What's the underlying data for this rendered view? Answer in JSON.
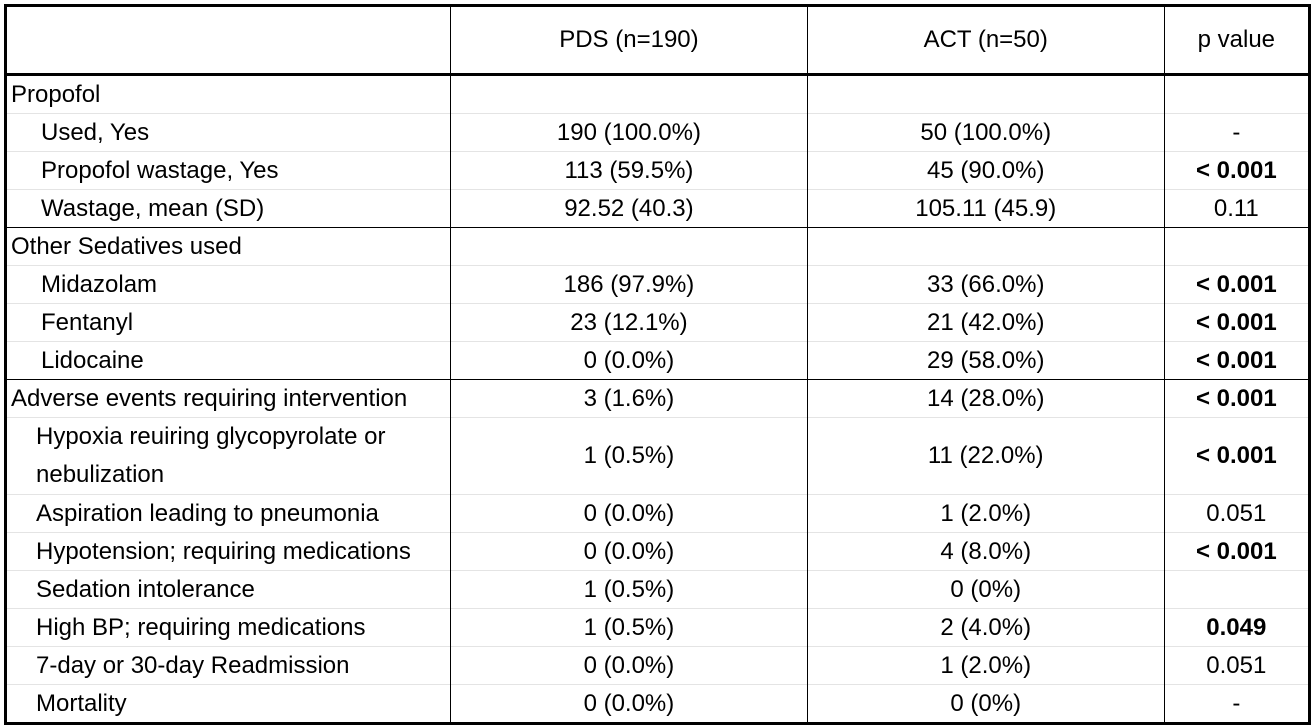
{
  "table": {
    "headers": [
      "",
      "PDS (n=190)",
      "ACT (n=50)",
      "p value"
    ],
    "rows": [
      {
        "label": "Propofol",
        "kind": "section",
        "pds": "",
        "act": "",
        "p": "",
        "sig": false
      },
      {
        "label": "Used, Yes",
        "kind": "item",
        "pds": "190 (100.0%)",
        "act": "50 (100.0%)",
        "p": "-",
        "sig": false
      },
      {
        "label": "Propofol wastage, Yes",
        "kind": "item",
        "pds": "113 (59.5%)",
        "act": "45 (90.0%)",
        "p": "< 0.001",
        "sig": true
      },
      {
        "label": "Wastage, mean (SD)",
        "kind": "item",
        "pds": "92.52 (40.3)",
        "act": "105.11 (45.9)",
        "p": "0.11",
        "sig": false
      },
      {
        "label": "Other Sedatives used",
        "kind": "section",
        "pds": "",
        "act": "",
        "p": "",
        "sig": false
      },
      {
        "label": "Midazolam",
        "kind": "item",
        "pds": "186 (97.9%)",
        "act": "33 (66.0%)",
        "p": "< 0.001",
        "sig": true
      },
      {
        "label": "Fentanyl",
        "kind": "item",
        "pds": "23 (12.1%)",
        "act": "21 (42.0%)",
        "p": "< 0.001",
        "sig": true
      },
      {
        "label": "Lidocaine",
        "kind": "item",
        "pds": "0 (0.0%)",
        "act": "29 (58.0%)",
        "p": "< 0.001",
        "sig": true
      },
      {
        "label": "Adverse events requiring intervention",
        "kind": "section",
        "pds": "3 (1.6%)",
        "act": "14 (28.0%)",
        "p": "< 0.001",
        "sig": true
      },
      {
        "label": "Hypoxia reuiring glycopyrolate or nebulization",
        "kind": "subitem-tall",
        "pds": "1 (0.5%)",
        "act": "11 (22.0%)",
        "p": "< 0.001",
        "sig": true
      },
      {
        "label": "Aspiration leading to pneumonia",
        "kind": "subitem",
        "pds": "0 (0.0%)",
        "act": "1 (2.0%)",
        "p": "0.051",
        "sig": false
      },
      {
        "label": "Hypotension; requiring medications",
        "kind": "subitem",
        "pds": "0 (0.0%)",
        "act": "4 (8.0%)",
        "p": "< 0.001",
        "sig": true
      },
      {
        "label": "Sedation intolerance",
        "kind": "subitem",
        "pds": "1 (0.5%)",
        "act": "0 (0%)",
        "p": "",
        "sig": false
      },
      {
        "label": "High BP; requiring medications",
        "kind": "subitem",
        "pds": "1 (0.5%)",
        "act": "2 (4.0%)",
        "p": "0.049",
        "sig": true
      },
      {
        "label": "7-day or 30-day Readmission",
        "kind": "subitem",
        "pds": "0 (0.0%)",
        "act": "1 (2.0%)",
        "p": "0.051",
        "sig": false
      },
      {
        "label": "Mortality",
        "kind": "subitem",
        "pds": "0 (0.0%)",
        "act": "0 (0%)",
        "p": "-",
        "sig": false
      }
    ]
  },
  "chart_data": {
    "type": "table",
    "columns": [
      "",
      "PDS (n=190)",
      "ACT (n=50)",
      "p value"
    ],
    "rows": [
      [
        "Propofol",
        "",
        "",
        ""
      ],
      [
        "Used, Yes",
        "190 (100.0%)",
        "50 (100.0%)",
        "-"
      ],
      [
        "Propofol wastage, Yes",
        "113 (59.5%)",
        "45 (90.0%)",
        "< 0.001"
      ],
      [
        "Wastage, mean (SD)",
        "92.52 (40.3)",
        "105.11 (45.9)",
        "0.11"
      ],
      [
        "Other Sedatives used",
        "",
        "",
        ""
      ],
      [
        "Midazolam",
        "186 (97.9%)",
        "33 (66.0%)",
        "< 0.001"
      ],
      [
        "Fentanyl",
        "23 (12.1%)",
        "21 (42.0%)",
        "< 0.001"
      ],
      [
        "Lidocaine",
        "0 (0.0%)",
        "29 (58.0%)",
        "< 0.001"
      ],
      [
        "Adverse events requiring intervention",
        "3 (1.6%)",
        "14 (28.0%)",
        "< 0.001"
      ],
      [
        "Hypoxia reuiring glycopyrolate or nebulization",
        "1 (0.5%)",
        "11 (22.0%)",
        "< 0.001"
      ],
      [
        "Aspiration leading to pneumonia",
        "0 (0.0%)",
        "1 (2.0%)",
        "0.051"
      ],
      [
        "Hypotension; requiring medications",
        "0 (0.0%)",
        "4 (8.0%)",
        "< 0.001"
      ],
      [
        "Sedation intolerance",
        "1 (0.5%)",
        "0 (0%)",
        ""
      ],
      [
        "High BP; requiring medications",
        "1 (0.5%)",
        "2 (4.0%)",
        "0.049"
      ],
      [
        "7-day or 30-day Readmission",
        "0 (0.0%)",
        "1 (2.0%)",
        "0.051"
      ],
      [
        "Mortality",
        "0 (0.0%)",
        "0 (0%)",
        "-"
      ]
    ]
  }
}
